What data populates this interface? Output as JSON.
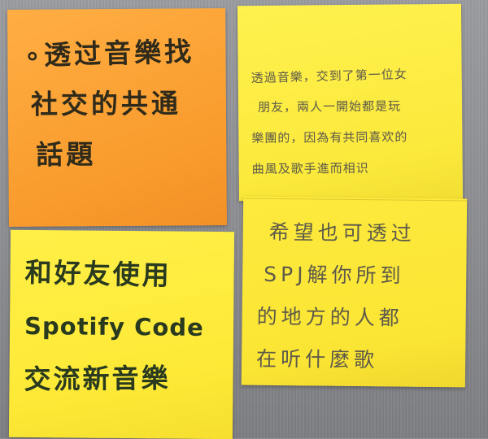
{
  "notes": {
    "orange": {
      "lines": [
        "∘透过音樂找",
        "社交的共通",
        "話題"
      ]
    },
    "yellow_left": {
      "lines": [
        "和好友使用",
        "Spotify Code",
        "交流新音樂"
      ]
    },
    "yellow_right_top": {
      "lines": [
        "透過音樂，交到了第一位女",
        "朋友，兩人一開始都是玩",
        "樂團的，因為有共同喜欢的",
        "曲風及歌手進而相识"
      ]
    },
    "yellow_right_bottom": {
      "lines": [
        "希望也可透过",
        "SPJ解你所到",
        "的地方的人都",
        "在听什麼歌"
      ]
    }
  },
  "colors": {
    "board": "#8d8e93",
    "orange_note": "#f99b2d",
    "yellow_note": "#fde936",
    "marker_green": "#2a3a1f",
    "pencil_gray": "#5d5a4a"
  }
}
